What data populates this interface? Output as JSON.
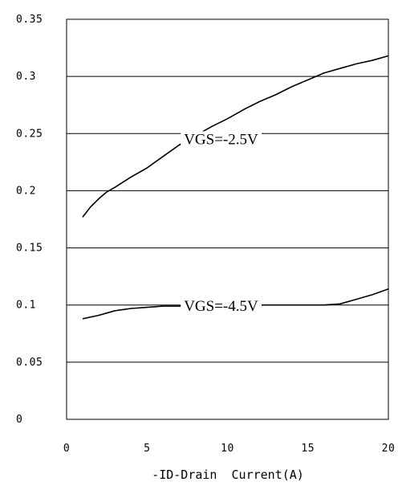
{
  "chart_data": {
    "type": "line",
    "xlabel": "-ID-Drain  Current(A)",
    "ylabel": "",
    "xlim": [
      0,
      20
    ],
    "ylim": [
      0,
      0.35
    ],
    "x_ticks": [
      "0",
      "5",
      "10",
      "15",
      "20"
    ],
    "y_ticks": [
      "0",
      "0.05",
      "0.1",
      "0.15",
      "0.2",
      "0.25",
      "0.3",
      "0.35"
    ],
    "grid": "horizontal",
    "series": [
      {
        "x": [
          1,
          1.5,
          2,
          2.5,
          3,
          4,
          5,
          6,
          7,
          8,
          9,
          10,
          11,
          12,
          13,
          14,
          15,
          16,
          17,
          18,
          19,
          20
        ],
        "values": [
          0.177,
          0.186,
          0.193,
          0.199,
          0.203,
          0.212,
          0.22,
          0.23,
          0.24,
          0.248,
          0.256,
          0.263,
          0.271,
          0.278,
          0.284,
          0.291,
          0.297,
          0.303,
          0.307,
          0.311,
          0.314,
          0.318
        ]
      },
      {
        "x": [
          1,
          2,
          2.5,
          3,
          3.5,
          4,
          5,
          6,
          7,
          8,
          9,
          10,
          11,
          12,
          13,
          14,
          15,
          16,
          17,
          18,
          19,
          20
        ],
        "values": [
          0.088,
          0.091,
          0.093,
          0.095,
          0.096,
          0.097,
          0.098,
          0.099,
          0.099,
          0.1,
          0.1,
          0.1,
          0.1,
          0.1,
          0.1,
          0.1,
          0.1,
          0.1,
          0.101,
          0.105,
          0.109,
          0.114
        ]
      }
    ],
    "annotations": [
      {
        "text": "VGS=-2.5V",
        "x": 9.6,
        "y": 0.245
      },
      {
        "text": "VGS=-4.5V",
        "x": 9.6,
        "y": 0.099
      }
    ]
  }
}
